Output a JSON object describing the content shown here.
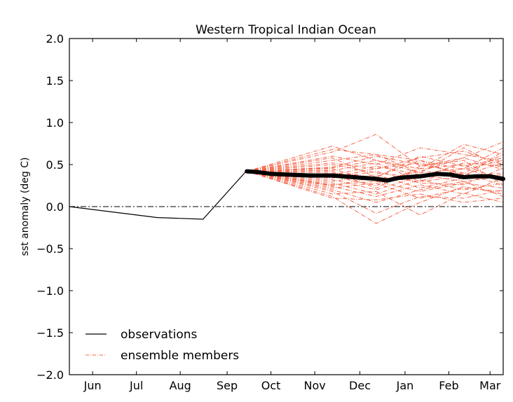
{
  "chart_data": {
    "type": "line",
    "title": "Western Tropical Indian Ocean",
    "xlabel": "",
    "ylabel": "sst anomaly (deg C)",
    "ylim": [
      -2.0,
      2.0
    ],
    "xlim_months": [
      0,
      9.9
    ],
    "yticks": [
      "2.0",
      "1.5",
      "1.0",
      "0.5",
      "0.0",
      "−0.5",
      "−1.0",
      "−1.5",
      "−2.0"
    ],
    "ytick_values": [
      2.0,
      1.5,
      1.0,
      0.5,
      0.0,
      -0.5,
      -1.0,
      -1.5,
      -2.0
    ],
    "xticks": [
      "Jun",
      "Jul",
      "Aug",
      "Sep",
      "Oct",
      "Nov",
      "Dec",
      "Jan",
      "Feb",
      "Mar"
    ],
    "xtick_values": [
      0.53,
      1.53,
      2.53,
      3.6,
      4.6,
      5.6,
      6.63,
      7.66,
      8.66,
      9.6
    ],
    "grid": false,
    "zero_line": {
      "value": 0.0,
      "style": "dash-dot",
      "color": "#000000"
    },
    "legend": {
      "position": "bottom-left",
      "entries": [
        {
          "label": "observations",
          "color": "#000000",
          "style": "solid"
        },
        {
          "label": "ensemble members",
          "color": "#f4664a",
          "style": "dash-dot"
        }
      ]
    },
    "observations": {
      "name": "observations",
      "color": "#000000",
      "x": [
        0.0,
        2.0,
        3.05,
        4.05
      ],
      "y": [
        0.0,
        -0.13,
        -0.15,
        0.43
      ]
    },
    "ensemble_mean": {
      "color": "#000000",
      "x": [
        4.05,
        4.3,
        4.6,
        5.0,
        5.5,
        6.0,
        6.5,
        7.0,
        7.25,
        7.5,
        7.7,
        8.0,
        8.4,
        8.7,
        9.0,
        9.3,
        9.6,
        9.9
      ],
      "y": [
        0.42,
        0.41,
        0.39,
        0.38,
        0.37,
        0.37,
        0.35,
        0.33,
        0.31,
        0.34,
        0.35,
        0.36,
        0.39,
        0.38,
        0.35,
        0.36,
        0.36,
        0.33
      ]
    },
    "ensemble_members": {
      "color": "#f4664a",
      "start": {
        "x": 4.05,
        "y": 0.42
      },
      "x": [
        6.0,
        7.0,
        8.0,
        9.0,
        9.9
      ],
      "series": [
        [
          0.72,
          0.55,
          0.45,
          0.74,
          0.62
        ],
        [
          0.65,
          0.86,
          0.48,
          0.58,
          0.77
        ],
        [
          0.6,
          0.5,
          0.7,
          0.62,
          0.54
        ],
        [
          0.55,
          0.62,
          0.4,
          0.45,
          0.7
        ],
        [
          0.52,
          0.45,
          0.58,
          0.66,
          0.5
        ],
        [
          0.5,
          0.4,
          0.35,
          0.52,
          0.48
        ],
        [
          0.47,
          0.6,
          0.5,
          0.4,
          0.62
        ],
        [
          0.45,
          0.3,
          0.42,
          0.58,
          0.44
        ],
        [
          0.43,
          0.52,
          0.3,
          0.36,
          0.4
        ],
        [
          0.4,
          0.35,
          0.55,
          0.44,
          0.55
        ],
        [
          0.38,
          0.48,
          0.38,
          0.3,
          0.36
        ],
        [
          0.36,
          0.25,
          0.45,
          0.5,
          0.3
        ],
        [
          0.34,
          0.42,
          0.28,
          0.26,
          0.46
        ],
        [
          0.32,
          0.2,
          0.36,
          0.4,
          0.25
        ],
        [
          0.3,
          0.38,
          0.22,
          0.34,
          0.38
        ],
        [
          0.28,
          0.15,
          0.32,
          0.2,
          0.28
        ],
        [
          0.26,
          0.3,
          0.18,
          0.28,
          0.22
        ],
        [
          0.24,
          0.12,
          0.26,
          0.15,
          0.34
        ],
        [
          0.22,
          0.28,
          0.1,
          0.22,
          0.18
        ],
        [
          0.2,
          0.05,
          0.2,
          0.3,
          0.12
        ],
        [
          0.18,
          -0.08,
          0.12,
          0.1,
          0.2
        ],
        [
          0.15,
          0.18,
          -0.1,
          0.16,
          0.05
        ],
        [
          0.12,
          -0.2,
          0.05,
          0.24,
          0.15
        ],
        [
          0.1,
          0.08,
          0.15,
          0.05,
          0.1
        ],
        [
          0.58,
          0.35,
          0.6,
          0.48,
          0.58
        ],
        [
          0.46,
          0.55,
          0.4,
          0.7,
          0.45
        ],
        [
          0.35,
          0.45,
          0.52,
          0.38,
          0.52
        ],
        [
          0.25,
          0.35,
          0.3,
          0.46,
          0.3
        ],
        [
          0.68,
          0.62,
          0.55,
          0.35,
          0.66
        ],
        [
          0.42,
          0.22,
          0.48,
          0.55,
          0.26
        ]
      ]
    }
  }
}
